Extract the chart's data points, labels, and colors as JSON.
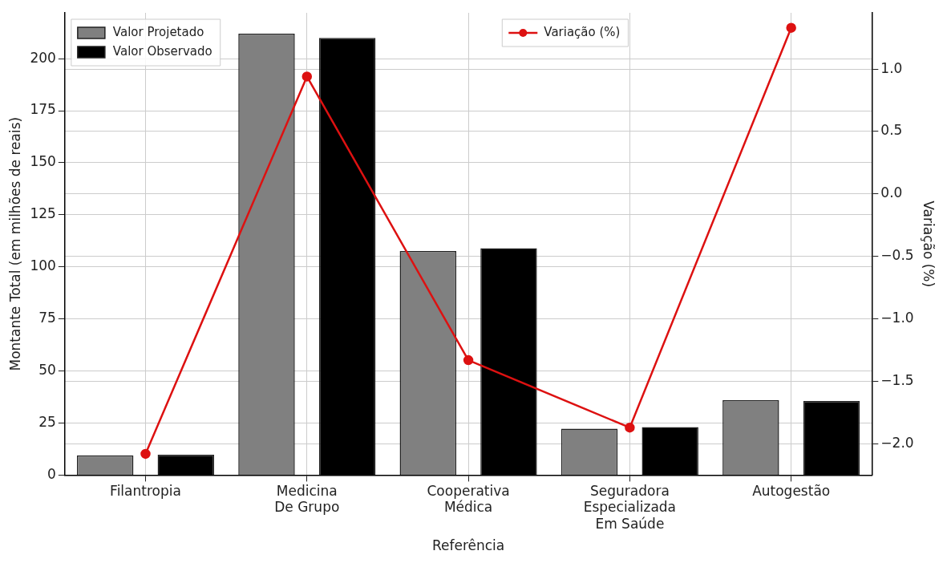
{
  "chart_data": {
    "type": "bar",
    "xlabel": "Referência",
    "ylabel": "Montante Total (em milhões de reais)",
    "y2label": "Variação (%)",
    "categories": [
      "Filantropia",
      "Medicina\nDe Grupo",
      "Cooperativa\nMédica",
      "Seguradora\nEspecializada\nEm Saúde",
      "Autogestão"
    ],
    "series": [
      {
        "name": "Valor Projetado",
        "color": "#808080",
        "values": [
          9.5,
          212,
          107.6,
          22.3,
          36
        ]
      },
      {
        "name": "Valor Observado",
        "color": "#000000",
        "values": [
          9.8,
          210,
          109,
          23.1,
          35.6
        ]
      },
      {
        "name": "Variação (%)",
        "type": "line",
        "axis": "y2",
        "color": "#dd1111",
        "marker": "circle",
        "values": [
          -2.08,
          0.94,
          -1.33,
          -1.87,
          1.33
        ]
      }
    ],
    "ylim": [
      0,
      222
    ],
    "yticks": [
      0,
      25,
      50,
      75,
      100,
      125,
      150,
      175,
      200
    ],
    "y2lim": [
      -2.25,
      1.45
    ],
    "y2ticks": [
      {
        "value": -2,
        "label": "−2.0"
      },
      {
        "value": -1.5,
        "label": "−1.5"
      },
      {
        "value": -1,
        "label": "−1.0"
      },
      {
        "value": -0.5,
        "label": "−0.5"
      },
      {
        "value": 0,
        "label": "0.0"
      },
      {
        "value": 0.5,
        "label": "0.5"
      },
      {
        "value": 1,
        "label": "1.0"
      }
    ],
    "grid": true,
    "legend": "top left"
  }
}
